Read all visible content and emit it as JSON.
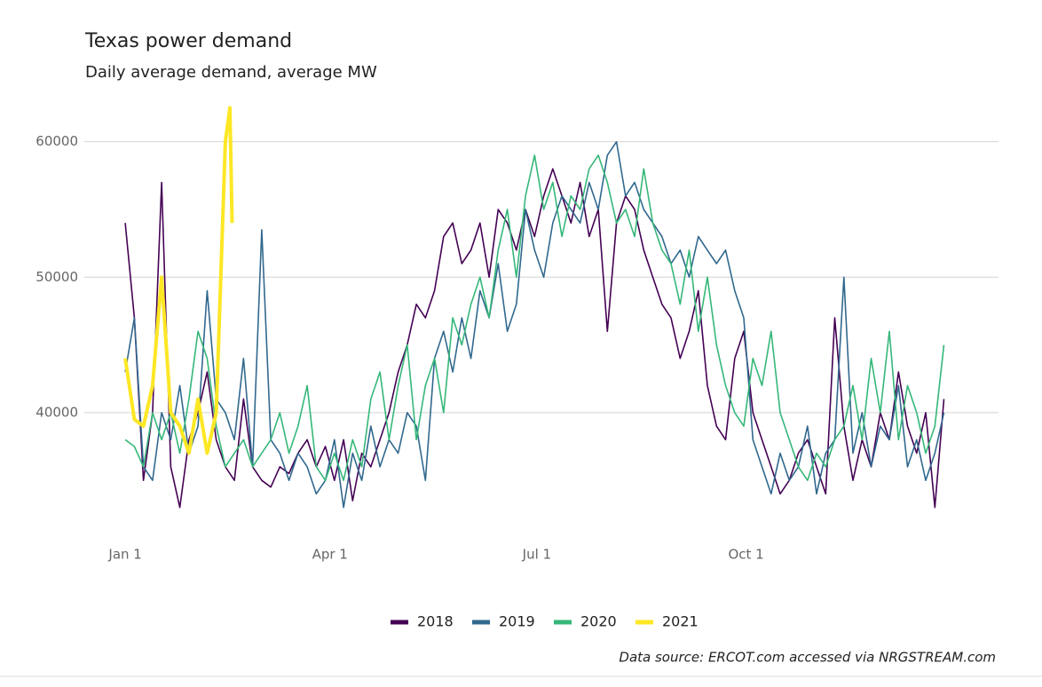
{
  "chart_data": {
    "type": "line",
    "title": "Texas power demand",
    "subtitle": "Daily average demand, average MW",
    "source": "Data source: ERCOT.com accessed via NRGSTREAM.com",
    "x": [
      1,
      5,
      9,
      13,
      17,
      21,
      25,
      29,
      33,
      37,
      41,
      45,
      49,
      53,
      57,
      61,
      65,
      69,
      73,
      77,
      81,
      85,
      89,
      93,
      97,
      101,
      105,
      109,
      113,
      117,
      121,
      125,
      129,
      133,
      137,
      141,
      145,
      149,
      153,
      157,
      161,
      165,
      169,
      173,
      177,
      181,
      185,
      189,
      193,
      197,
      201,
      205,
      209,
      213,
      217,
      221,
      225,
      229,
      233,
      237,
      241,
      245,
      249,
      253,
      257,
      261,
      265,
      269,
      273,
      277,
      281,
      285,
      289,
      293,
      297,
      301,
      305,
      309,
      313,
      317,
      321,
      325,
      329,
      333,
      337,
      341,
      345,
      349,
      353,
      357,
      361
    ],
    "xlim": [
      -17,
      385
    ],
    "xticks": [
      {
        "value": 1,
        "label": "Jan 1"
      },
      {
        "value": 91,
        "label": "Apr 1"
      },
      {
        "value": 182,
        "label": "Jul 1"
      },
      {
        "value": 274,
        "label": "Oct 1"
      }
    ],
    "ylim": [
      31800,
      62600
    ],
    "yticks": [
      40000,
      50000,
      60000
    ],
    "grid": true,
    "legend": "bottom",
    "series": [
      {
        "name": "2018",
        "color": "#440154",
        "values": [
          54000,
          47000,
          35000,
          40000,
          57000,
          36000,
          33000,
          38000,
          40000,
          43000,
          38000,
          36000,
          35000,
          41000,
          36000,
          35000,
          34500,
          36000,
          35500,
          37000,
          38000,
          36000,
          37500,
          35000,
          38000,
          33500,
          37000,
          36000,
          38000,
          40000,
          43000,
          45000,
          48000,
          47000,
          49000,
          53000,
          54000,
          51000,
          52000,
          54000,
          50000,
          55000,
          54000,
          52000,
          55000,
          53000,
          56000,
          58000,
          56000,
          54000,
          57000,
          53000,
          55000,
          46000,
          54000,
          56000,
          55000,
          52000,
          50000,
          48000,
          47000,
          44000,
          46000,
          49000,
          42000,
          39000,
          38000,
          44000,
          46000,
          40000,
          38000,
          36000,
          34000,
          35000,
          37000,
          38000,
          36000,
          34000,
          47000,
          39000,
          35000,
          38000,
          36000,
          40000,
          38000,
          43000,
          39000,
          37000,
          40000,
          33000,
          41000
        ]
      },
      {
        "name": "2019",
        "color": "#31688e",
        "values": [
          43000,
          47000,
          36000,
          35000,
          40000,
          38000,
          42000,
          37000,
          39000,
          49000,
          41000,
          40000,
          38000,
          44000,
          36000,
          53500,
          38000,
          37000,
          35000,
          37000,
          36000,
          34000,
          35000,
          38000,
          33000,
          37000,
          35000,
          39000,
          36000,
          38000,
          37000,
          40000,
          39000,
          35000,
          44000,
          46000,
          43000,
          47000,
          44000,
          49000,
          47000,
          51000,
          46000,
          48000,
          55000,
          52000,
          50000,
          54000,
          56000,
          55000,
          54000,
          57000,
          55000,
          59000,
          60000,
          56000,
          57000,
          55000,
          54000,
          53000,
          51000,
          52000,
          50000,
          53000,
          52000,
          51000,
          52000,
          49000,
          47000,
          38000,
          36000,
          34000,
          37000,
          35000,
          36000,
          39000,
          34000,
          37000,
          38000,
          50000,
          37000,
          40000,
          36000,
          39000,
          38000,
          42000,
          36000,
          38000,
          35000,
          37000,
          40000
        ]
      },
      {
        "name": "2020",
        "color": "#35b779",
        "values": [
          38000,
          37500,
          36000,
          40000,
          38000,
          40000,
          37000,
          41000,
          46000,
          44000,
          39000,
          36000,
          37000,
          38000,
          36000,
          37000,
          38000,
          40000,
          37000,
          39000,
          42000,
          36000,
          35000,
          37000,
          35000,
          38000,
          36000,
          41000,
          43000,
          38000,
          42000,
          45000,
          38000,
          42000,
          44000,
          40000,
          47000,
          45000,
          48000,
          50000,
          47000,
          52000,
          55000,
          50000,
          56000,
          59000,
          55000,
          57000,
          53000,
          56000,
          55000,
          58000,
          59000,
          57000,
          54000,
          55000,
          53000,
          58000,
          54000,
          52000,
          51000,
          48000,
          52000,
          46000,
          50000,
          45000,
          42000,
          40000,
          39000,
          44000,
          42000,
          46000,
          40000,
          38000,
          36000,
          35000,
          37000,
          36000,
          38000,
          39000,
          42000,
          38000,
          44000,
          40000,
          46000,
          38000,
          42000,
          40000,
          37000,
          39000,
          45000
        ]
      },
      {
        "name": "2021",
        "color": "#fde725",
        "x": [
          1,
          5,
          9,
          13,
          17,
          21,
          25,
          29,
          33,
          37,
          41,
          45,
          47,
          48
        ],
        "values": [
          44000,
          39500,
          39000,
          42000,
          50000,
          40000,
          39000,
          37000,
          41000,
          37000,
          40000,
          60000,
          62500,
          54000
        ]
      }
    ]
  }
}
